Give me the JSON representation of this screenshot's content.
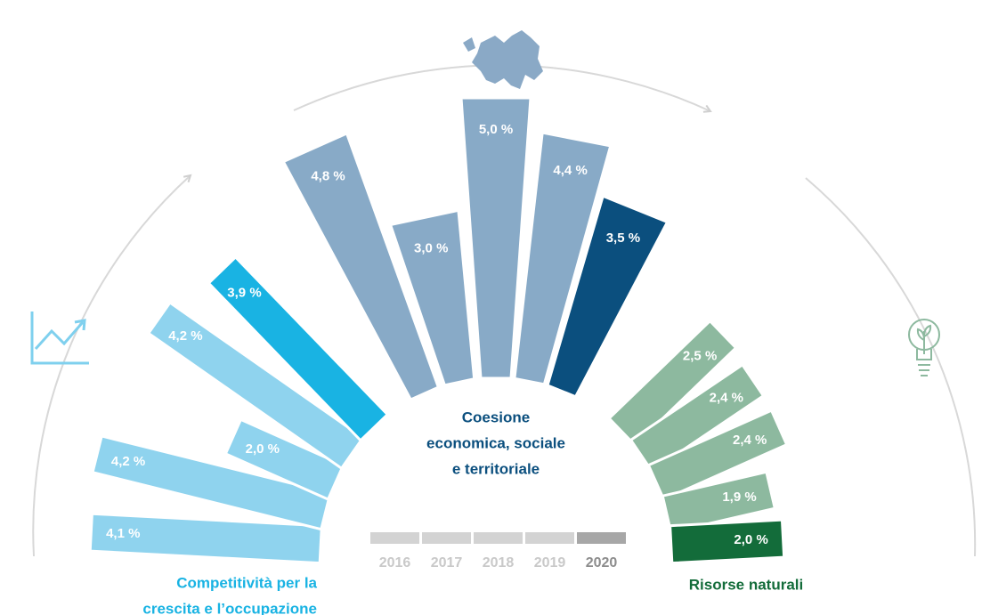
{
  "chart_data": {
    "type": "radial_bar",
    "categories": [
      "2016",
      "2017",
      "2018",
      "2019",
      "2020"
    ],
    "series": [
      {
        "name": [
          "Competitività per la",
          "crescita e l’occupazione"
        ],
        "color": "#8fd3ee",
        "highlight_color": "#19b3e3",
        "values": [
          4.1,
          4.2,
          2.0,
          4.2,
          3.9
        ],
        "value_labels": [
          "4,1 %",
          "4,2 %",
          "2,0 %",
          "4,2 %",
          "3,9 %"
        ]
      },
      {
        "name": [
          "Coesione",
          "economica, sociale",
          "e territoriale"
        ],
        "color": "#88aac7",
        "highlight_color": "#0b4f7e",
        "values": [
          4.8,
          3.0,
          5.0,
          4.4,
          3.5
        ],
        "value_labels": [
          "4,8 %",
          "3,0 %",
          "5,0 %",
          "4,4 %",
          "3,5 %"
        ]
      },
      {
        "name": [
          "Risorse naturali"
        ],
        "color": "#8db99f",
        "highlight_color": "#136c3a",
        "values": [
          2.5,
          2.4,
          2.4,
          1.9,
          2.0
        ],
        "value_labels": [
          "2,5 %",
          "2,4 %",
          "2,4 %",
          "1,9 %",
          "2,0 %"
        ]
      }
    ],
    "legend_color": "#d3d3d3",
    "legend_highlight_color": "#a7a7a7"
  }
}
